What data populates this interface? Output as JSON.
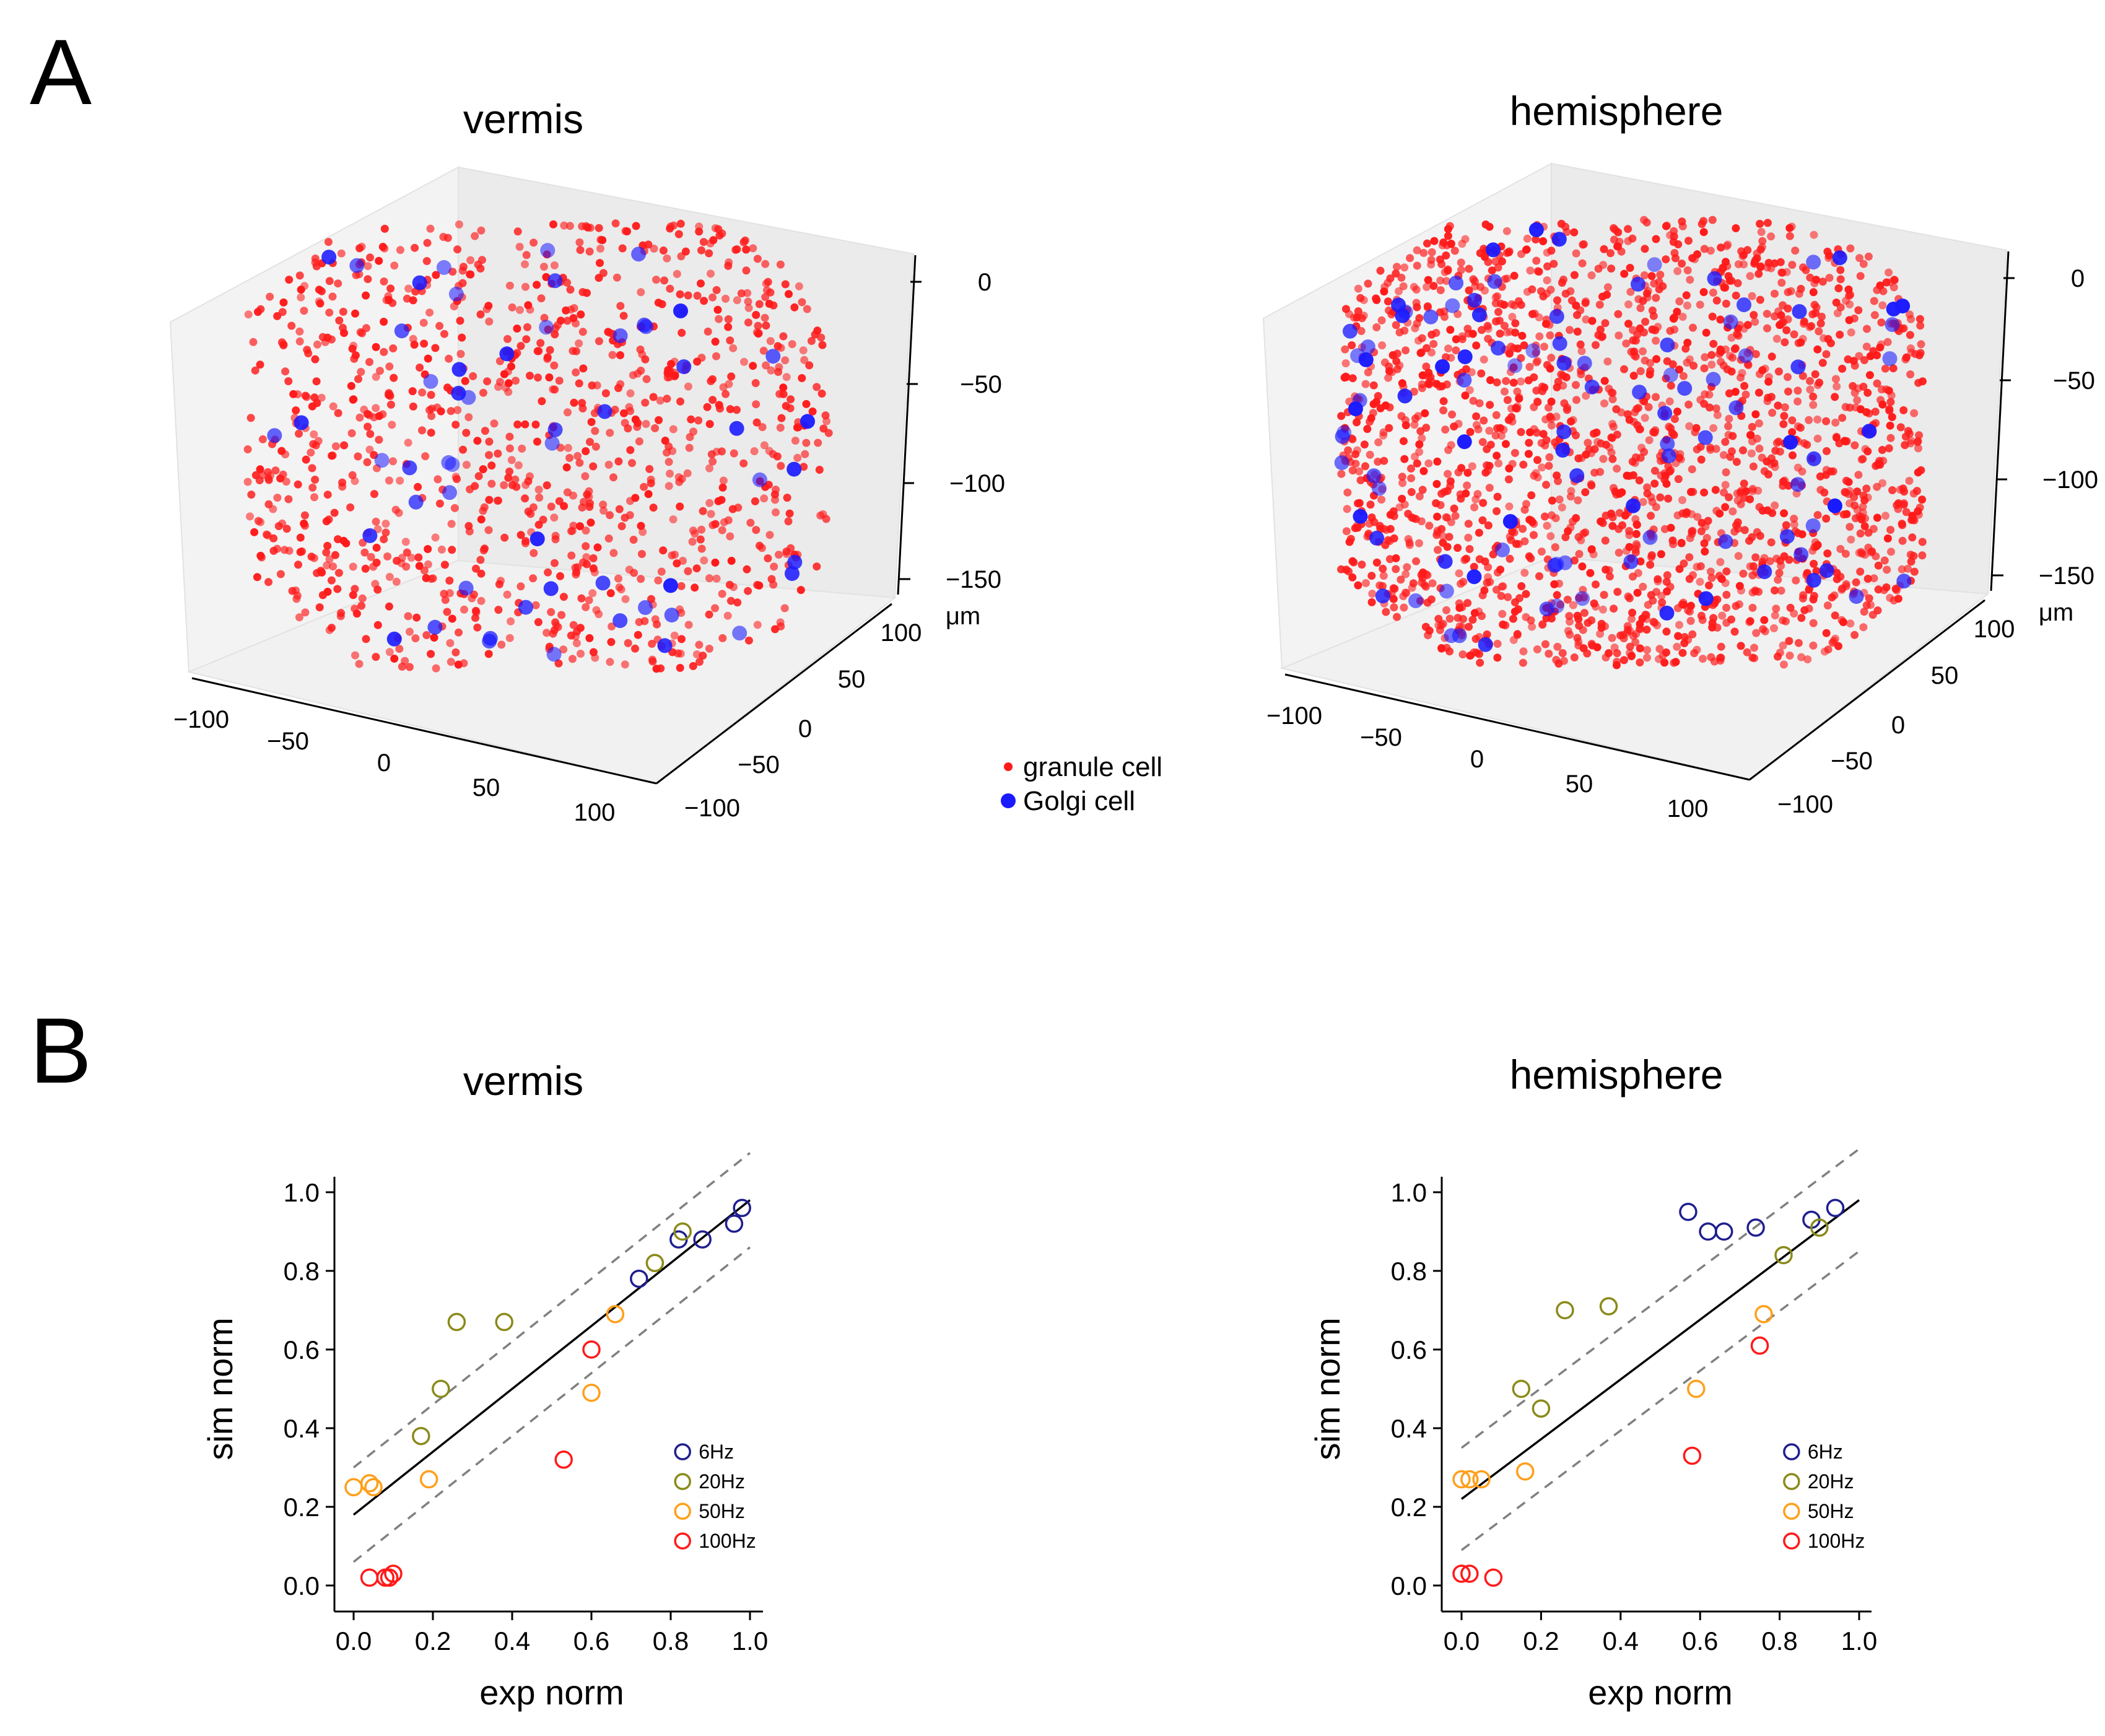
{
  "panel_A": {
    "letter": "A",
    "legend": {
      "granule": "granule cell",
      "golgi": "Golgi cell",
      "granule_color": "#ff1a1a",
      "golgi_color": "#1a1aff"
    },
    "z_unit": "μm"
  },
  "panel_B": {
    "letter": "B"
  },
  "chart_data": [
    {
      "type": "scatter",
      "subtype": "3d",
      "title": "vermis",
      "xlim": [
        -100,
        100
      ],
      "ylim": [
        -100,
        100
      ],
      "zlim": [
        -150,
        0
      ],
      "x_ticks": [
        "−100",
        "−50",
        "0",
        "50",
        "100"
      ],
      "y_ticks": [
        "−100",
        "−50",
        "0",
        "50",
        "100"
      ],
      "z_ticks": [
        "0",
        "−50",
        "−100",
        "−150"
      ],
      "zlabel": "μm",
      "series": [
        {
          "name": "granule cell",
          "color": "#ff1a1a",
          "count": 1100
        },
        {
          "name": "Golgi cell",
          "color": "#1a1aff",
          "count": 55
        }
      ]
    },
    {
      "type": "scatter",
      "subtype": "3d",
      "title": "hemisphere",
      "xlim": [
        -100,
        100
      ],
      "ylim": [
        -100,
        100
      ],
      "zlim": [
        -150,
        0
      ],
      "x_ticks": [
        "−100",
        "−50",
        "0",
        "50",
        "100"
      ],
      "y_ticks": [
        "−100",
        "−50",
        "0",
        "50",
        "100"
      ],
      "z_ticks": [
        "0",
        "−50",
        "−100",
        "−150"
      ],
      "zlabel": "μm",
      "series": [
        {
          "name": "granule cell",
          "color": "#ff1a1a",
          "count": 2000
        },
        {
          "name": "Golgi cell",
          "color": "#1a1aff",
          "count": 100
        }
      ]
    },
    {
      "type": "scatter",
      "title": "vermis",
      "xlabel": "exp norm",
      "ylabel": "sim norm",
      "xlim": [
        0.0,
        1.0
      ],
      "ylim": [
        0.0,
        1.0
      ],
      "x_ticks": [
        "0.0",
        "0.2",
        "0.4",
        "0.6",
        "0.8",
        "1.0"
      ],
      "y_ticks": [
        "0.0",
        "0.2",
        "0.4",
        "0.6",
        "0.8",
        "1.0"
      ],
      "fit": {
        "intercept": 0.18,
        "slope": 0.8,
        "ci_band": 0.12
      },
      "series": [
        {
          "name": "6Hz",
          "color": "#1f1f8f",
          "points": [
            [
              0.72,
              0.78
            ],
            [
              0.82,
              0.88
            ],
            [
              0.88,
              0.88
            ],
            [
              0.96,
              0.92
            ],
            [
              0.98,
              0.96
            ]
          ]
        },
        {
          "name": "20Hz",
          "color": "#8a8a1a",
          "points": [
            [
              0.17,
              0.38
            ],
            [
              0.22,
              0.5
            ],
            [
              0.26,
              0.67
            ],
            [
              0.38,
              0.67
            ],
            [
              0.76,
              0.82
            ],
            [
              0.83,
              0.9
            ]
          ]
        },
        {
          "name": "50Hz",
          "color": "#ff9f1a",
          "points": [
            [
              0.0,
              0.25
            ],
            [
              0.04,
              0.26
            ],
            [
              0.05,
              0.25
            ],
            [
              0.19,
              0.27
            ],
            [
              0.6,
              0.49
            ],
            [
              0.66,
              0.69
            ]
          ]
        },
        {
          "name": "100Hz",
          "color": "#ff1a1a",
          "points": [
            [
              0.04,
              0.02
            ],
            [
              0.08,
              0.02
            ],
            [
              0.09,
              0.02
            ],
            [
              0.1,
              0.03
            ],
            [
              0.53,
              0.32
            ],
            [
              0.6,
              0.6
            ]
          ]
        }
      ]
    },
    {
      "type": "scatter",
      "title": "hemisphere",
      "xlabel": "exp norm",
      "ylabel": "sim norm",
      "xlim": [
        0.0,
        1.0
      ],
      "ylim": [
        0.0,
        1.0
      ],
      "x_ticks": [
        "0.0",
        "0.2",
        "0.4",
        "0.6",
        "0.8",
        "1.0"
      ],
      "y_ticks": [
        "0.0",
        "0.2",
        "0.4",
        "0.6",
        "0.8",
        "1.0"
      ],
      "fit": {
        "intercept": 0.22,
        "slope": 0.76,
        "ci_band": 0.13
      },
      "series": [
        {
          "name": "6Hz",
          "color": "#1f1f8f",
          "points": [
            [
              0.57,
              0.95
            ],
            [
              0.62,
              0.9
            ],
            [
              0.66,
              0.9
            ],
            [
              0.74,
              0.91
            ],
            [
              0.88,
              0.93
            ],
            [
              0.94,
              0.96
            ]
          ]
        },
        {
          "name": "20Hz",
          "color": "#8a8a1a",
          "points": [
            [
              0.15,
              0.5
            ],
            [
              0.2,
              0.45
            ],
            [
              0.26,
              0.7
            ],
            [
              0.37,
              0.71
            ],
            [
              0.81,
              0.84
            ],
            [
              0.9,
              0.91
            ]
          ]
        },
        {
          "name": "50Hz",
          "color": "#ff9f1a",
          "points": [
            [
              0.0,
              0.27
            ],
            [
              0.02,
              0.27
            ],
            [
              0.05,
              0.27
            ],
            [
              0.16,
              0.29
            ],
            [
              0.59,
              0.5
            ],
            [
              0.76,
              0.69
            ]
          ]
        },
        {
          "name": "100Hz",
          "color": "#ff1a1a",
          "points": [
            [
              0.0,
              0.03
            ],
            [
              0.02,
              0.03
            ],
            [
              0.08,
              0.02
            ],
            [
              0.58,
              0.33
            ],
            [
              0.75,
              0.61
            ]
          ]
        }
      ]
    }
  ]
}
